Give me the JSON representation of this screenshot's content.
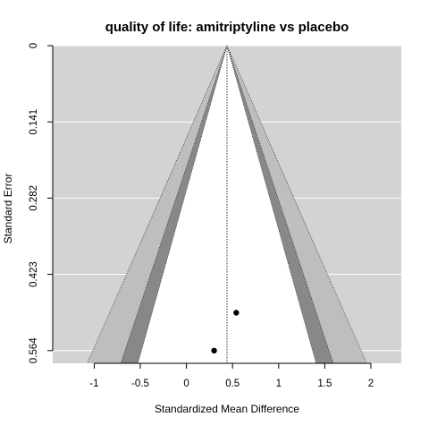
{
  "chart_data": {
    "type": "scatter",
    "subtype": "contour-enhanced funnel plot",
    "title": "quality of life: amitriptyline vs placebo",
    "xlabel": "Standardized Mean Difference",
    "ylabel": "Standard Error",
    "xlim": [
      -1.45,
      2.33
    ],
    "ylim": [
      0,
      0.5875
    ],
    "y_reversed": true,
    "x_ticks": [
      -1,
      -0.5,
      0,
      0.5,
      1,
      1.5,
      2
    ],
    "x_tick_labels": [
      "-1",
      "-0.5",
      "0",
      "0.5",
      "1",
      "1.5",
      "2"
    ],
    "y_ticks": [
      0,
      0.141,
      0.282,
      0.423,
      0.564
    ],
    "y_tick_labels": [
      "0",
      "0.141",
      "0.282",
      "0.423",
      "0.564"
    ],
    "grid": true,
    "center_estimate": 0.44,
    "contour_levels": [
      {
        "z": 1.645,
        "color": "#ffffff"
      },
      {
        "z": 1.96,
        "color": "#888888"
      },
      {
        "z": 2.576,
        "color": "#bebebe"
      }
    ],
    "colors": {
      "panel_background": "#d3d3d3",
      "gridline": "#ffffff",
      "points": "#000000"
    },
    "points": [
      {
        "x": 0.54,
        "y": 0.494
      },
      {
        "x": 0.3,
        "y": 0.564
      }
    ]
  }
}
